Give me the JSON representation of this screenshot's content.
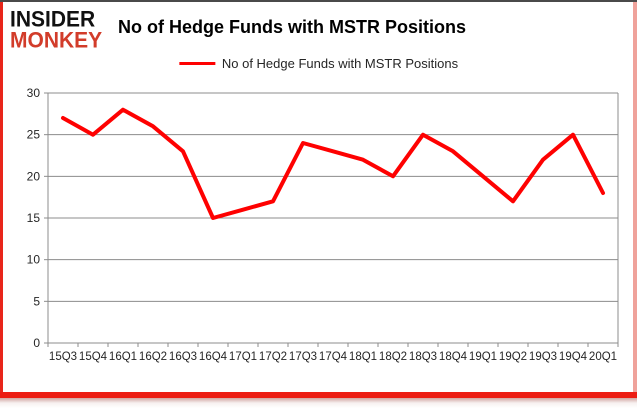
{
  "logo": {
    "line1": "INSIDER",
    "line2": "MONKEY"
  },
  "header": {
    "title": "No of Hedge Funds with MSTR Positions"
  },
  "legend": {
    "label": "No of Hedge Funds with MSTR Positions"
  },
  "colors": {
    "line": "#fe0101",
    "logo_black": "#111111",
    "logo_red": "#d23c2a",
    "frame_red": "#ec1c12",
    "grid": "#8c8c8c",
    "axis": "#8c8c8c",
    "tick_text": "#262626",
    "title_text": "#000000"
  },
  "chart_data": {
    "type": "line",
    "title": "No of Hedge Funds with MSTR Positions",
    "categories": [
      "15Q3",
      "15Q4",
      "16Q1",
      "16Q2",
      "16Q3",
      "16Q4",
      "17Q1",
      "17Q2",
      "17Q3",
      "17Q4",
      "18Q1",
      "18Q2",
      "18Q3",
      "18Q4",
      "19Q1",
      "19Q2",
      "19Q3",
      "19Q4",
      "20Q1"
    ],
    "series": [
      {
        "name": "No of Hedge Funds with MSTR Positions",
        "color": "#fe0101",
        "values": [
          27,
          25,
          28,
          26,
          23,
          15,
          16,
          17,
          24,
          23,
          22,
          20,
          25,
          23,
          20,
          17,
          22,
          25,
          18
        ]
      }
    ],
    "xlabel": "",
    "ylabel": "",
    "ylim": [
      0,
      30
    ],
    "yticks": [
      0,
      5,
      10,
      15,
      20,
      25,
      30
    ],
    "grid": true,
    "legend_position": "top-center"
  }
}
